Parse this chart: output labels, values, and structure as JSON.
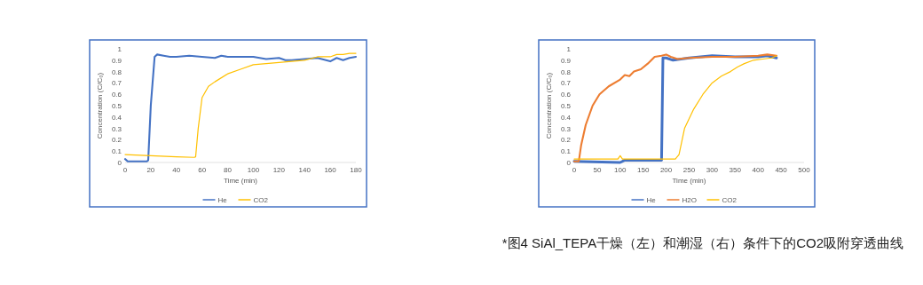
{
  "chart_data": [
    {
      "type": "line",
      "xlabel": "Time (min)",
      "ylabel": "Concentration (C/C₀)",
      "xlim": [
        0,
        180
      ],
      "xticks": [
        0,
        20,
        40,
        60,
        80,
        100,
        120,
        140,
        160,
        180
      ],
      "ylim": [
        0,
        1
      ],
      "yticks": [
        0,
        0.1,
        0.2,
        0.3,
        0.4,
        0.5,
        0.6,
        0.7,
        0.8,
        0.9,
        1
      ],
      "grid": false,
      "legend": "bottom",
      "series": [
        {
          "name": "He",
          "color": "#4472c4",
          "x": [
            0,
            2,
            17,
            18,
            20,
            23,
            25,
            30,
            35,
            40,
            50,
            60,
            70,
            75,
            80,
            90,
            100,
            110,
            120,
            125,
            130,
            140,
            150,
            160,
            165,
            170,
            175,
            180
          ],
          "values": [
            0.03,
            0.01,
            0.01,
            0.02,
            0.5,
            0.93,
            0.95,
            0.94,
            0.93,
            0.93,
            0.94,
            0.93,
            0.92,
            0.94,
            0.93,
            0.93,
            0.93,
            0.91,
            0.92,
            0.9,
            0.9,
            0.91,
            0.92,
            0.89,
            0.92,
            0.9,
            0.92,
            0.93
          ]
        },
        {
          "name": "CO2",
          "color": "#ffc000",
          "x": [
            0,
            20,
            40,
            54,
            55,
            57,
            60,
            65,
            70,
            80,
            90,
            100,
            110,
            120,
            130,
            140,
            150,
            160,
            165,
            170,
            175,
            180
          ],
          "values": [
            0.07,
            0.06,
            0.05,
            0.045,
            0.05,
            0.3,
            0.57,
            0.67,
            0.71,
            0.78,
            0.82,
            0.86,
            0.87,
            0.88,
            0.89,
            0.9,
            0.93,
            0.93,
            0.95,
            0.95,
            0.96,
            0.96
          ]
        }
      ]
    },
    {
      "type": "line",
      "xlabel": "Time (min)",
      "ylabel": "Concentration (C/C₀)",
      "xlim": [
        0,
        500
      ],
      "xticks": [
        0,
        50,
        100,
        150,
        200,
        250,
        300,
        350,
        400,
        450,
        500
      ],
      "ylim": [
        0,
        1
      ],
      "yticks": [
        0,
        0.1,
        0.2,
        0.3,
        0.4,
        0.5,
        0.6,
        0.7,
        0.8,
        0.9,
        1
      ],
      "grid": false,
      "legend": "bottom",
      "annotations": [
        "*图4 SiAl_TEPA干燥（左）和潮湿（右）条件下的CO2吸附穿透曲线"
      ],
      "series": [
        {
          "name": "He",
          "color": "#4472c4",
          "x": [
            0,
            100,
            110,
            150,
            190,
            193,
            200,
            215,
            250,
            300,
            350,
            400,
            420,
            440
          ],
          "values": [
            0.01,
            0.0,
            0.02,
            0.02,
            0.02,
            0.92,
            0.92,
            0.9,
            0.92,
            0.94,
            0.93,
            0.93,
            0.94,
            0.92
          ]
        },
        {
          "name": "H2O",
          "color": "#ed7d31",
          "x": [
            0,
            10,
            15,
            25,
            40,
            55,
            75,
            100,
            110,
            120,
            130,
            145,
            160,
            175,
            190,
            200,
            210,
            225,
            250,
            300,
            350,
            400,
            420,
            440
          ],
          "values": [
            0.01,
            0.01,
            0.15,
            0.33,
            0.5,
            0.6,
            0.67,
            0.73,
            0.77,
            0.76,
            0.8,
            0.82,
            0.87,
            0.93,
            0.94,
            0.95,
            0.93,
            0.91,
            0.92,
            0.93,
            0.93,
            0.94,
            0.95,
            0.94
          ]
        },
        {
          "name": "CO2",
          "color": "#ffc000",
          "x": [
            0,
            95,
            100,
            105,
            150,
            200,
            220,
            228,
            240,
            260,
            280,
            300,
            320,
            340,
            355,
            370,
            390,
            410,
            430,
            440
          ],
          "values": [
            0.03,
            0.03,
            0.06,
            0.03,
            0.03,
            0.03,
            0.03,
            0.07,
            0.3,
            0.47,
            0.6,
            0.7,
            0.76,
            0.8,
            0.84,
            0.87,
            0.9,
            0.91,
            0.92,
            0.94
          ]
        }
      ]
    }
  ]
}
